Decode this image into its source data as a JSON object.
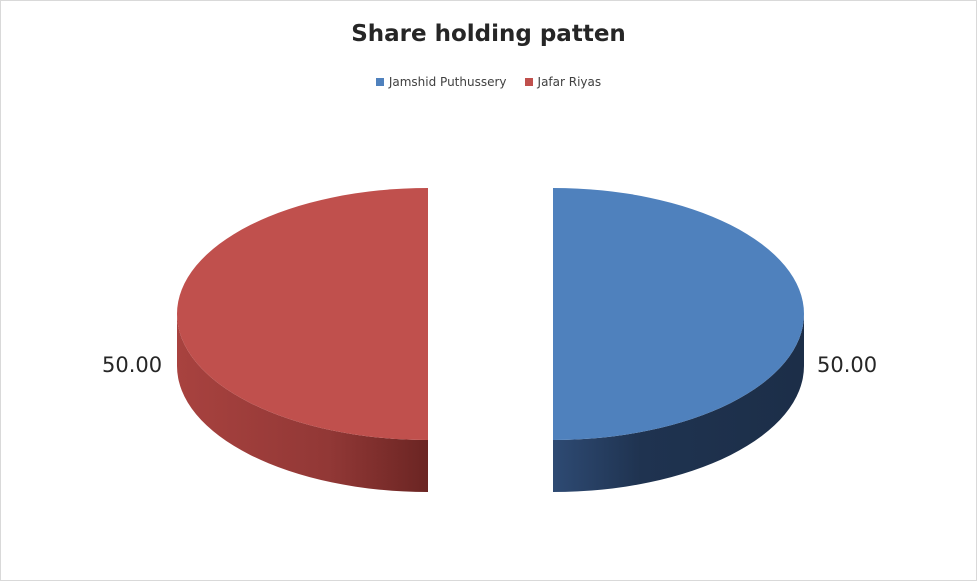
{
  "chart_data": {
    "type": "pie",
    "style": "3d-exploded",
    "title": "Share holding patten",
    "legend_position": "top",
    "slices": [
      {
        "name": "Jamshid Puthussery",
        "value": 50,
        "label": "50.00",
        "color": "#4F81BD",
        "side_color": "#1F3350"
      },
      {
        "name": "Jafar Riyas",
        "value": 50,
        "label": "50.00",
        "color": "#C0504D",
        "side_color": "#8A3432"
      }
    ]
  }
}
